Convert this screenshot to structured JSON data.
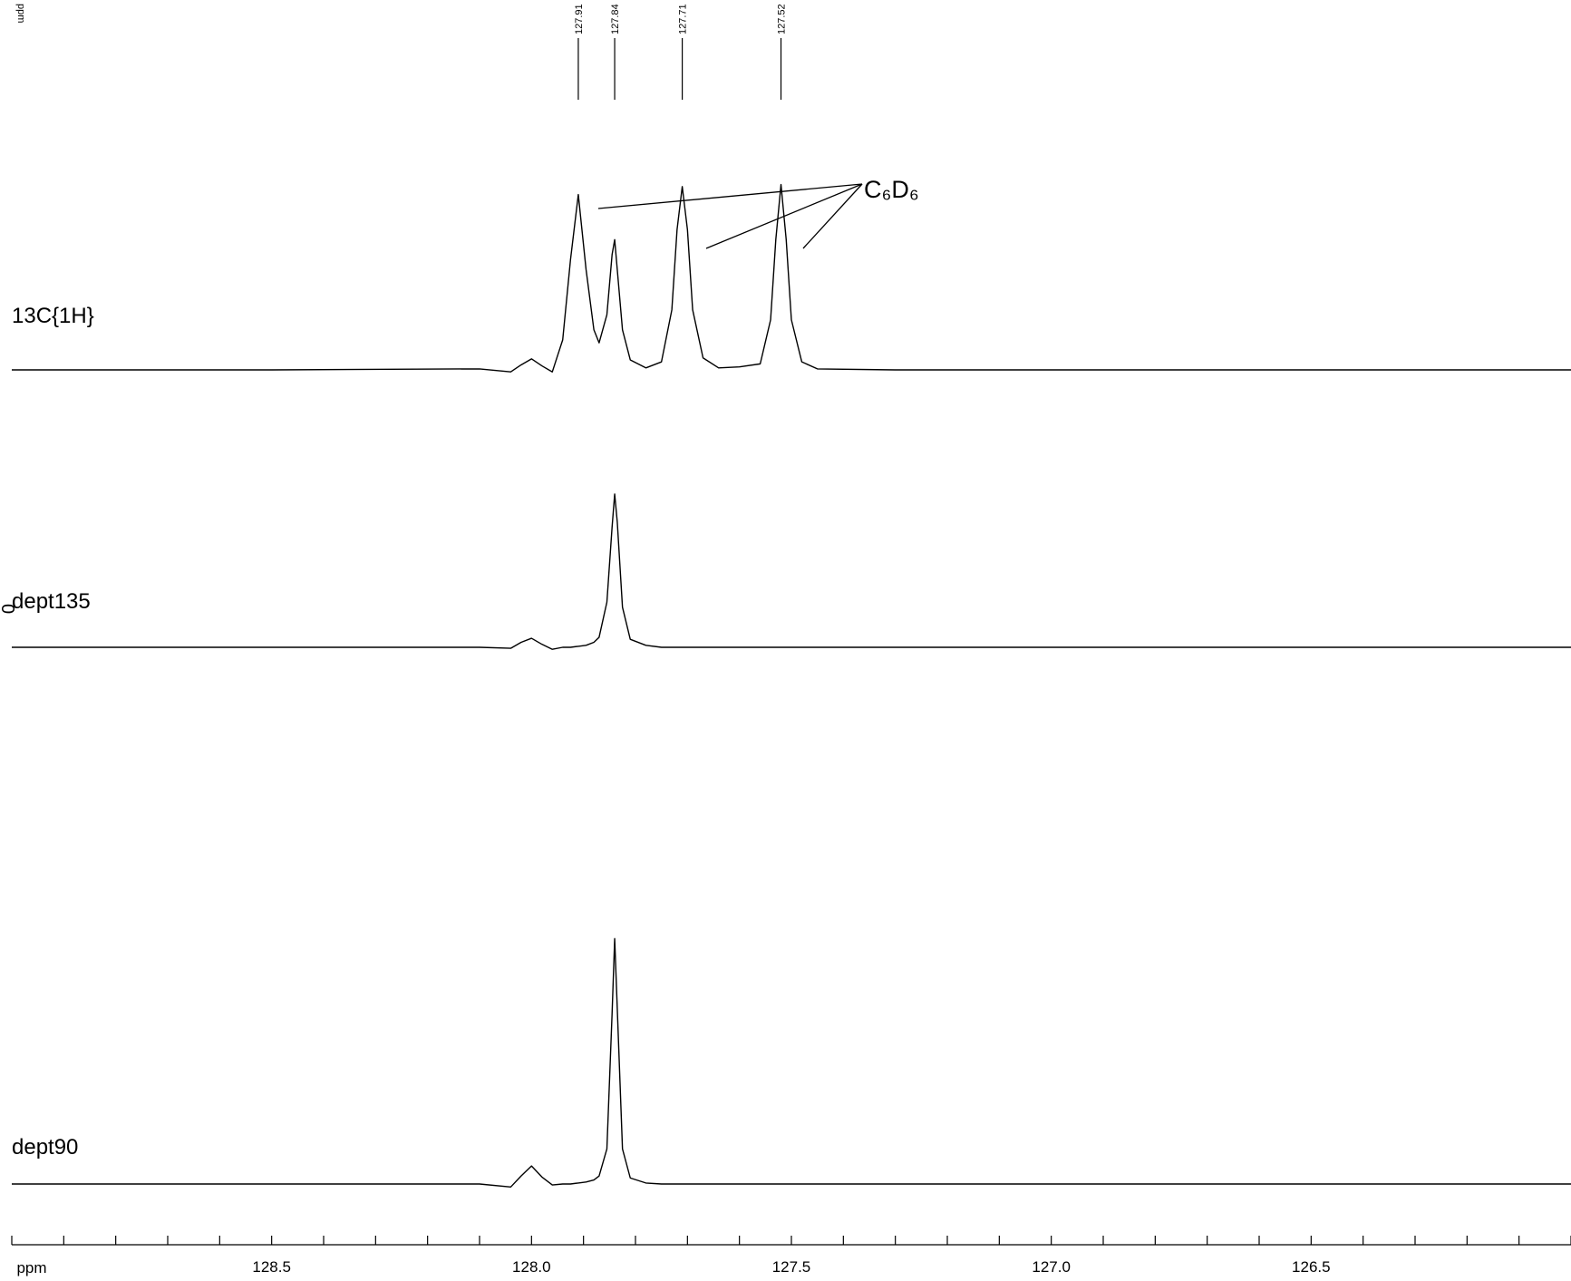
{
  "chart_data": {
    "type": "line",
    "x_label": "ppm",
    "peak_axis_label": "ppm",
    "offset_label": "0",
    "annotation": "C₆D₆",
    "xlim": [
      129.0,
      126.0
    ],
    "xticks": [
      128.5,
      {
        "value": 128,
        "label": "128.0"
      },
      127.5,
      {
        "value": 127,
        "label": "127.0"
      },
      126.5
    ],
    "xminorticks": [
      129,
      128.9,
      128.8,
      128.7,
      128.6,
      128.4,
      128.3,
      128.2,
      128.1,
      127.9,
      127.8,
      127.7,
      127.6,
      127.4,
      127.3,
      127.2,
      127.1,
      126.9,
      126.8,
      126.7,
      126.6,
      126.4,
      126.3,
      126.2,
      126.1,
      126
    ],
    "peak_picks": [
      127.91,
      127.84,
      127.71,
      127.52
    ],
    "x": [
      129.0,
      128.5,
      128.1,
      128.04,
      128.02,
      128.0,
      127.98,
      127.96,
      127.94,
      127.925,
      127.91,
      127.895,
      127.88,
      127.87,
      127.855,
      127.845,
      127.84,
      127.835,
      127.825,
      127.81,
      127.78,
      127.75,
      127.73,
      127.72,
      127.71,
      127.7,
      127.69,
      127.67,
      127.64,
      127.6,
      127.56,
      127.54,
      127.53,
      127.52,
      127.51,
      127.5,
      127.48,
      127.45,
      127.3,
      127.0,
      126.5,
      126.0
    ],
    "series": [
      {
        "name": "13C{1H}",
        "color": "#000000",
        "values": [
          0,
          0,
          1,
          -2,
          5,
          11,
          4,
          -2,
          30,
          110,
          175,
          100,
          40,
          27,
          55,
          115,
          130,
          100,
          40,
          10,
          2,
          8,
          60,
          140,
          183,
          140,
          60,
          12,
          2,
          3,
          6,
          50,
          130,
          185,
          130,
          50,
          8,
          1,
          0,
          0,
          0,
          0
        ]
      },
      {
        "name": "dept135",
        "color": "#000000",
        "values": [
          0,
          0,
          0,
          -1,
          5,
          9,
          3,
          -2,
          0,
          0,
          1,
          2,
          5,
          10,
          45,
          120,
          153,
          125,
          40,
          8,
          2,
          0,
          0,
          0,
          0,
          0,
          0,
          0,
          0,
          0,
          0,
          0,
          0,
          0,
          0,
          0,
          0,
          0,
          0,
          0,
          0,
          0
        ]
      },
      {
        "name": "dept90",
        "color": "#000000",
        "values": [
          0,
          0,
          0,
          -3,
          8,
          18,
          7,
          -1,
          0,
          0,
          1,
          2,
          4,
          8,
          35,
          170,
          245,
          175,
          35,
          6,
          1,
          0,
          0,
          0,
          0,
          0,
          0,
          0,
          0,
          0,
          0,
          0,
          0,
          0,
          0,
          0,
          0,
          0,
          0,
          0,
          0,
          0
        ]
      }
    ]
  }
}
